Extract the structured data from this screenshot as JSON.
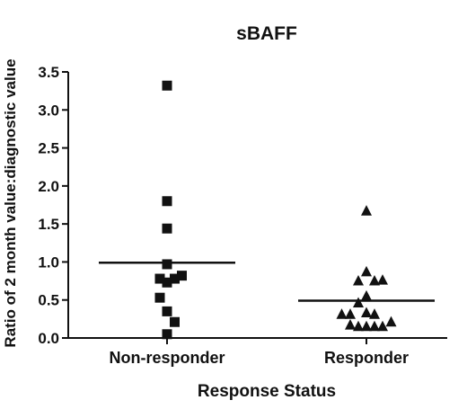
{
  "chart_data": {
    "type": "scatter",
    "title": "sBAFF",
    "xlabel": "Response Status",
    "ylabel": "Ratio of 2 month value:diagnostic value",
    "ylim": [
      0,
      3.5
    ],
    "yticks": [
      0.0,
      0.5,
      1.0,
      1.5,
      2.0,
      2.5,
      3.0,
      3.5
    ],
    "ytick_labels": [
      "0.0",
      "0.5",
      "1.0",
      "1.5",
      "2.0",
      "2.5",
      "3.0",
      "3.5"
    ],
    "categories": [
      "Non-responder",
      "Responder"
    ],
    "grid": false,
    "legend": "none",
    "series": [
      {
        "category": "Non-responder",
        "marker": "square",
        "color": "#111111",
        "median": 0.99,
        "points": [
          {
            "jitter": 0.0,
            "y": 3.32
          },
          {
            "jitter": 0.0,
            "y": 1.8
          },
          {
            "jitter": 0.0,
            "y": 1.44
          },
          {
            "jitter": 0.0,
            "y": 0.97
          },
          {
            "jitter": -0.16,
            "y": 0.78
          },
          {
            "jitter": 0.17,
            "y": 0.78
          },
          {
            "jitter": 0.33,
            "y": 0.82
          },
          {
            "jitter": 0.0,
            "y": 0.73
          },
          {
            "jitter": -0.16,
            "y": 0.53
          },
          {
            "jitter": 0.0,
            "y": 0.35
          },
          {
            "jitter": 0.17,
            "y": 0.21
          },
          {
            "jitter": 0.0,
            "y": 0.05
          }
        ]
      },
      {
        "category": "Responder",
        "marker": "triangle",
        "color": "#111111",
        "median": 0.49,
        "points": [
          {
            "jitter": 0.0,
            "y": 1.67
          },
          {
            "jitter": 0.0,
            "y": 0.87
          },
          {
            "jitter": -0.18,
            "y": 0.75
          },
          {
            "jitter": 0.18,
            "y": 0.75
          },
          {
            "jitter": 0.36,
            "y": 0.76
          },
          {
            "jitter": 0.0,
            "y": 0.55
          },
          {
            "jitter": -0.18,
            "y": 0.46
          },
          {
            "jitter": -0.55,
            "y": 0.31
          },
          {
            "jitter": -0.36,
            "y": 0.31
          },
          {
            "jitter": 0.0,
            "y": 0.33
          },
          {
            "jitter": 0.18,
            "y": 0.31
          },
          {
            "jitter": -0.36,
            "y": 0.17
          },
          {
            "jitter": -0.18,
            "y": 0.15
          },
          {
            "jitter": 0.0,
            "y": 0.15
          },
          {
            "jitter": 0.18,
            "y": 0.15
          },
          {
            "jitter": 0.36,
            "y": 0.15
          },
          {
            "jitter": 0.55,
            "y": 0.21
          }
        ]
      }
    ]
  }
}
